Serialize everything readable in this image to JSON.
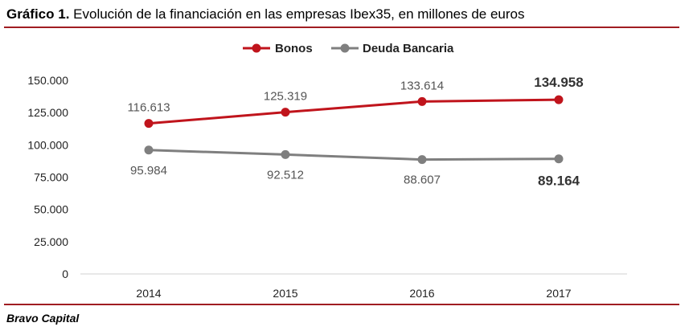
{
  "header": {
    "title_bold": "Gráfico 1.",
    "title_rest": " Evolución de la financiación en las empresas Ibex35, en millones de euros"
  },
  "footer": {
    "source": "Bravo Capital"
  },
  "chart_data": {
    "type": "line",
    "title": "Evolución de la financiación en las empresas Ibex35, en millones de euros",
    "categories": [
      "2014",
      "2015",
      "2016",
      "2017"
    ],
    "ylim": [
      0,
      150000
    ],
    "yticks": [
      0,
      25000,
      50000,
      75000,
      100000,
      125000,
      150000
    ],
    "ytick_labels": [
      "0",
      "25.000",
      "50.000",
      "75.000",
      "100.000",
      "125.000",
      "150.000"
    ],
    "grid": false,
    "legend_position": "top-center",
    "series": [
      {
        "name": "Bonos",
        "color": "#c0141c",
        "values": [
          116613,
          125319,
          133614,
          134958
        ],
        "labels": [
          "116.613",
          "125.319",
          "133.614",
          "134.958"
        ],
        "label_position": "above"
      },
      {
        "name": "Deuda Bancaria",
        "color": "#7f7f7f",
        "values": [
          95984,
          92512,
          88607,
          89164
        ],
        "labels": [
          "95.984",
          "92.512",
          "88.607",
          "89.164"
        ],
        "label_position": "below"
      }
    ]
  }
}
